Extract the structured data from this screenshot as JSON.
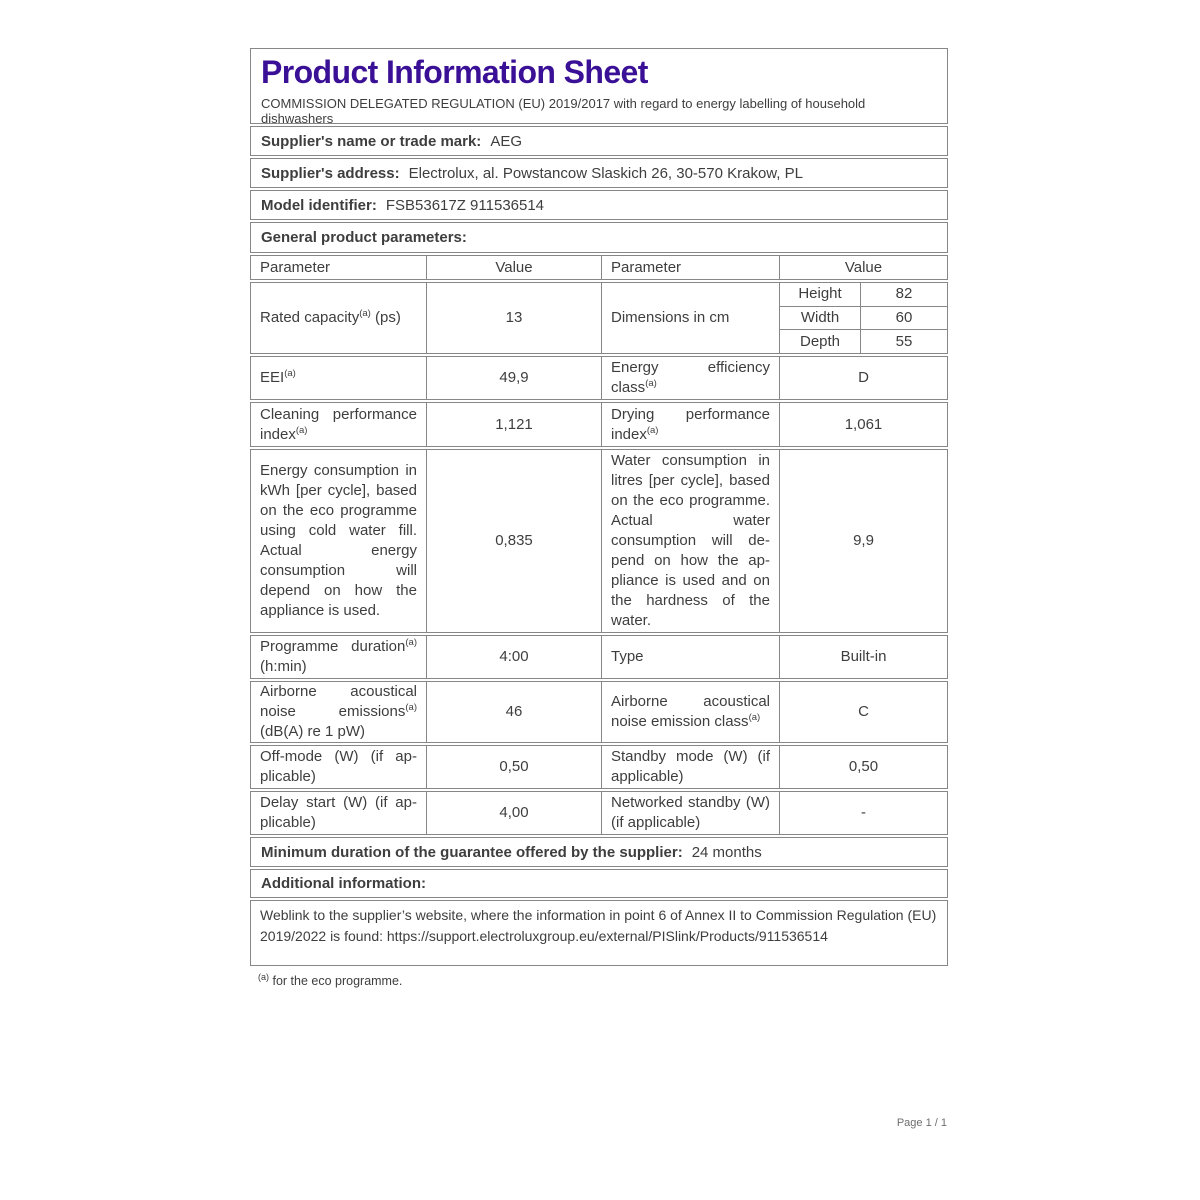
{
  "sheet": {
    "title": "Product Information Sheet",
    "subtitle": "COMMISSION DELEGATED REGULATION (EU) 2019/2017 with regard to energy labelling of household dishwashers",
    "supplier_name": {
      "label": "Supplier's name or trade mark:",
      "value": "AEG"
    },
    "supplier_address": {
      "label": "Supplier's address:",
      "value": "Electrolux, al. Powstancow Slaskich 26, 30-570 Krakow, PL"
    },
    "model_identifier": {
      "label": "Model identifier:",
      "value": "FSB53617Z 911536514"
    },
    "general_heading": "General product parameters:",
    "table": {
      "sup_marker": "(a)",
      "headers": [
        "Parameter",
        "Value",
        "Parameter",
        "Value"
      ],
      "rows": {
        "rated": {
          "l": "Rated capacity",
          "l_post": " (ps)",
          "v1": "13",
          "r": "Dimensions in cm",
          "dims": [
            {
              "k": "Height",
              "v": "82"
            },
            {
              "k": "Width",
              "v": "60"
            },
            {
              "k": "Depth",
              "v": "55"
            }
          ]
        },
        "eei": {
          "l": "EEI",
          "v1": "49,9",
          "r": "Energy efficiency class",
          "v2": "D"
        },
        "perf": {
          "l": "Cleaning performance index",
          "v1": "1,121",
          "r": "Drying performance index",
          "v2": "1,061"
        },
        "energy": {
          "l": "Energy consumption in kWh [per cycle], based on the eco programme using cold water fill. Actual en­ergy consumption will depend on how the appliance is used.",
          "v1": "0,835",
          "r": "Water consumption in litres [per cycle], based on the eco pro­gramme. Actual water consumption will de­pend on how the ap­pliance is used and on the hardness of the water.",
          "v2": "9,9"
        },
        "duration": {
          "l": "Programme duration",
          "l_post": " (h:min)",
          "v1": "4:00",
          "r": "Type",
          "v2": "Built-in"
        },
        "noise": {
          "l": "Airborne acoustical noise emissions",
          "l_post": " (dB(A) re 1 pW)",
          "v1": "46",
          "r": "Airborne acoustical noise emission class",
          "v2": "C"
        },
        "standby": {
          "l": "Off-mode (W) (if ap­plicable)",
          "v1": "0,50",
          "r": "Standby mode (W) (if applicable)",
          "v2": "0,50"
        },
        "delay": {
          "l": "Delay start (W) (if ap­plicable)",
          "v1": "4,00",
          "r": "Networked standby (W) (if applicable)",
          "v2": "-"
        }
      }
    },
    "guarantee": {
      "label": "Minimum duration of the guarantee offered by the supplier:",
      "value": "24 months"
    },
    "additional_heading": "Additional information:",
    "weblink": {
      "text": "Weblink to the supplier’s website, where the information in point 6 of Annex II to Commission Regulation (EU) 2019/2022 is found: ",
      "url": "https://support.electroluxgroup.eu/external/PISlink/Products​/911536514"
    },
    "footnote": {
      "marker": "(a)",
      "text": " for the eco programme."
    }
  },
  "page": {
    "footer": "Page 1 / 1"
  }
}
